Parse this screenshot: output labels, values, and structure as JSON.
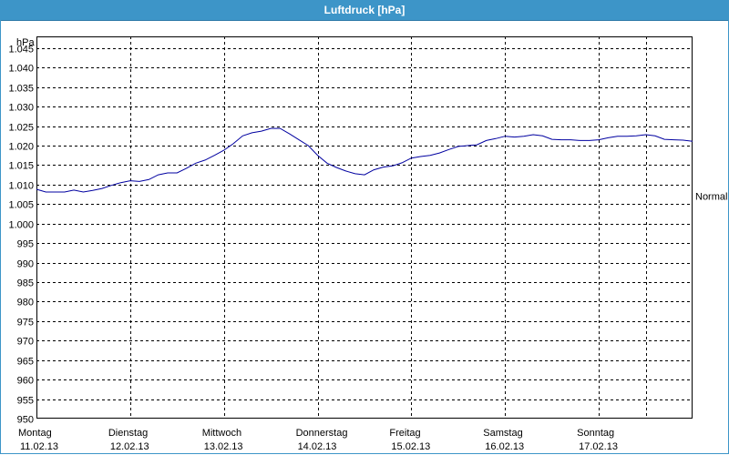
{
  "window": {
    "title": "Luftdruck [hPa]"
  },
  "chart_data": {
    "type": "line",
    "title": "Luftdruck [hPa]",
    "ylabel": "hPa",
    "ylim": [
      950,
      1048
    ],
    "yticks": [
      950,
      955,
      960,
      965,
      970,
      975,
      980,
      985,
      990,
      995,
      1000,
      1005,
      1010,
      1015,
      1020,
      1025,
      1030,
      1035,
      1040,
      1045
    ],
    "ytick_labels": [
      "950",
      "955",
      "960",
      "965",
      "970",
      "975",
      "980",
      "985",
      "990",
      "995",
      "1.000",
      "1.005",
      "1.010",
      "1.015",
      "1.020",
      "1.025",
      "1.030",
      "1.035",
      "1.040",
      "1.045"
    ],
    "xlim": [
      0,
      7
    ],
    "days": [
      {
        "weekday": "Montag",
        "date": "11.02.13"
      },
      {
        "weekday": "Dienstag",
        "date": "12.02.13"
      },
      {
        "weekday": "Mittwoch",
        "date": "13.02.13"
      },
      {
        "weekday": "Donnerstag",
        "date": "14.02.13"
      },
      {
        "weekday": "Freitag",
        "date": "15.02.13"
      },
      {
        "weekday": "Samstag",
        "date": "16.02.13"
      },
      {
        "weekday": "Sonntag",
        "date": "17.02.13"
      }
    ],
    "grid": true,
    "reference_label": "Normal",
    "reference_value": 1007,
    "series": [
      {
        "color": "#0000a0",
        "x": [
          0,
          0.1,
          0.3,
          0.4,
          0.5,
          0.6,
          0.7,
          0.8,
          0.9,
          1.0,
          1.1,
          1.2,
          1.3,
          1.4,
          1.5,
          1.6,
          1.7,
          1.8,
          1.9,
          2.0,
          2.1,
          2.2,
          2.3,
          2.4,
          2.5,
          2.6,
          2.7,
          2.8,
          2.9,
          3.0,
          3.1,
          3.2,
          3.3,
          3.4,
          3.5,
          3.6,
          3.7,
          3.8,
          3.9,
          4.0,
          4.1,
          4.2,
          4.3,
          4.4,
          4.5,
          4.6,
          4.7,
          4.8,
          4.9,
          5.0,
          5.1,
          5.2,
          5.3,
          5.4,
          5.5,
          5.6,
          5.7,
          5.8,
          5.9,
          6.0,
          6.1,
          6.2,
          6.3,
          6.4,
          6.5,
          6.6,
          6.7,
          6.8,
          6.9,
          7.0
        ],
        "values": [
          1008.8,
          1008.1,
          1008.1,
          1008.6,
          1008.1,
          1008.5,
          1009.0,
          1009.8,
          1010.5,
          1011.0,
          1010.8,
          1011.3,
          1012.5,
          1013.0,
          1013.0,
          1014.2,
          1015.5,
          1016.3,
          1017.5,
          1018.8,
          1020.5,
          1022.5,
          1023.3,
          1023.7,
          1024.4,
          1024.4,
          1023.0,
          1021.5,
          1020.0,
          1017.5,
          1015.5,
          1014.4,
          1013.5,
          1012.8,
          1012.5,
          1013.8,
          1014.5,
          1014.8,
          1015.6,
          1016.8,
          1017.2,
          1017.5,
          1018.1,
          1019.0,
          1019.8,
          1020.0,
          1020.2,
          1021.3,
          1021.8,
          1022.4,
          1022.2,
          1022.4,
          1022.8,
          1022.5,
          1021.6,
          1021.5,
          1021.5,
          1021.3,
          1021.3,
          1021.5,
          1022.0,
          1022.4,
          1022.4,
          1022.5,
          1022.8,
          1022.5,
          1021.6,
          1021.5,
          1021.4,
          1021.1
        ]
      }
    ]
  }
}
